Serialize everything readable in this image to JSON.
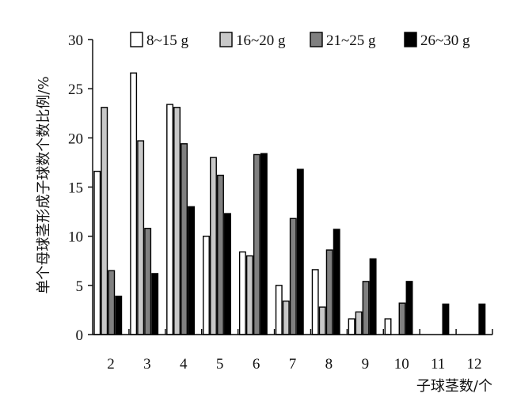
{
  "chart_data": {
    "type": "bar",
    "title": "",
    "xlabel": "子球茎数/个",
    "ylabel": "单个母球茎形成子球数个数比例/%",
    "categories": [
      "2",
      "3",
      "4",
      "5",
      "6",
      "7",
      "8",
      "9",
      "10",
      "11",
      "12"
    ],
    "ylim": [
      0,
      30
    ],
    "yticks": [
      "0",
      "5",
      "10",
      "15",
      "20",
      "25",
      "30"
    ],
    "grid": false,
    "legend_position": "top-right",
    "series": [
      {
        "name": "8~15 g",
        "color": "#ffffff",
        "values": [
          16.6,
          26.6,
          23.4,
          10.0,
          8.4,
          5.0,
          6.6,
          1.6,
          1.6,
          0,
          0
        ]
      },
      {
        "name": "16~20 g",
        "color": "#c8c8c8",
        "values": [
          23.1,
          19.7,
          23.1,
          18.0,
          8.0,
          3.4,
          2.8,
          2.3,
          0,
          0,
          0
        ]
      },
      {
        "name": "21~25 g",
        "color": "#808080",
        "values": [
          6.5,
          10.8,
          19.4,
          16.2,
          18.3,
          11.8,
          8.6,
          5.4,
          3.2,
          0,
          0
        ]
      },
      {
        "name": "26~30 g",
        "color": "#000000",
        "values": [
          3.9,
          6.2,
          13.0,
          12.3,
          18.4,
          16.8,
          10.7,
          7.7,
          5.4,
          3.1,
          3.1
        ]
      }
    ]
  }
}
